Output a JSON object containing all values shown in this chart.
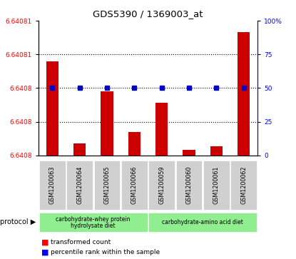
{
  "title": "GDS5390 / 1369003_at",
  "samples": [
    "GSM1200063",
    "GSM1200064",
    "GSM1200065",
    "GSM1200066",
    "GSM1200059",
    "GSM1200060",
    "GSM1200061",
    "GSM1200062"
  ],
  "red_values": [
    6.640815,
    6.640801,
    6.64081,
    6.640803,
    6.640808,
    6.6408,
    6.6408005,
    6.64082
  ],
  "blue_values": [
    50,
    50,
    50,
    50,
    50,
    50,
    50,
    50
  ],
  "y_min": 6.640799,
  "y_max": 6.640822,
  "left_tick_pcts": [
    0,
    25,
    50,
    75,
    100
  ],
  "left_tick_labels": [
    "6.6408",
    "6.6408",
    "6.6408",
    "6.64081",
    "6.64081"
  ],
  "right_tick_labels": [
    "0",
    "25",
    "50",
    "75",
    "100%"
  ],
  "bar_color": "#CC0000",
  "dot_color": "#0000CC",
  "green_color": "#90EE90",
  "gray_color": "#d0d0d0",
  "protocol_label": "protocol",
  "group1_label1": "carbohydrate-whey protein",
  "group1_label2": "hydrolysate diet",
  "group2_label": "carbohydrate-amino acid diet",
  "legend_red": "transformed count",
  "legend_blue": "percentile rank within the sample",
  "bar_width": 0.45
}
